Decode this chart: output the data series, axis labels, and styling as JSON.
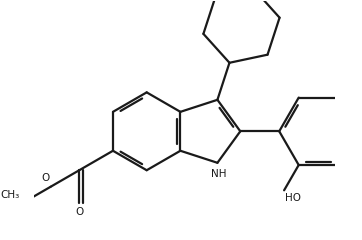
{
  "background_color": "#ffffff",
  "line_color": "#1a1a1a",
  "line_width": 1.6,
  "figsize": [
    3.62,
    2.4
  ],
  "dpi": 100,
  "xlim": [
    -1.5,
    10.5
  ],
  "ylim": [
    -1.0,
    8.5
  ]
}
